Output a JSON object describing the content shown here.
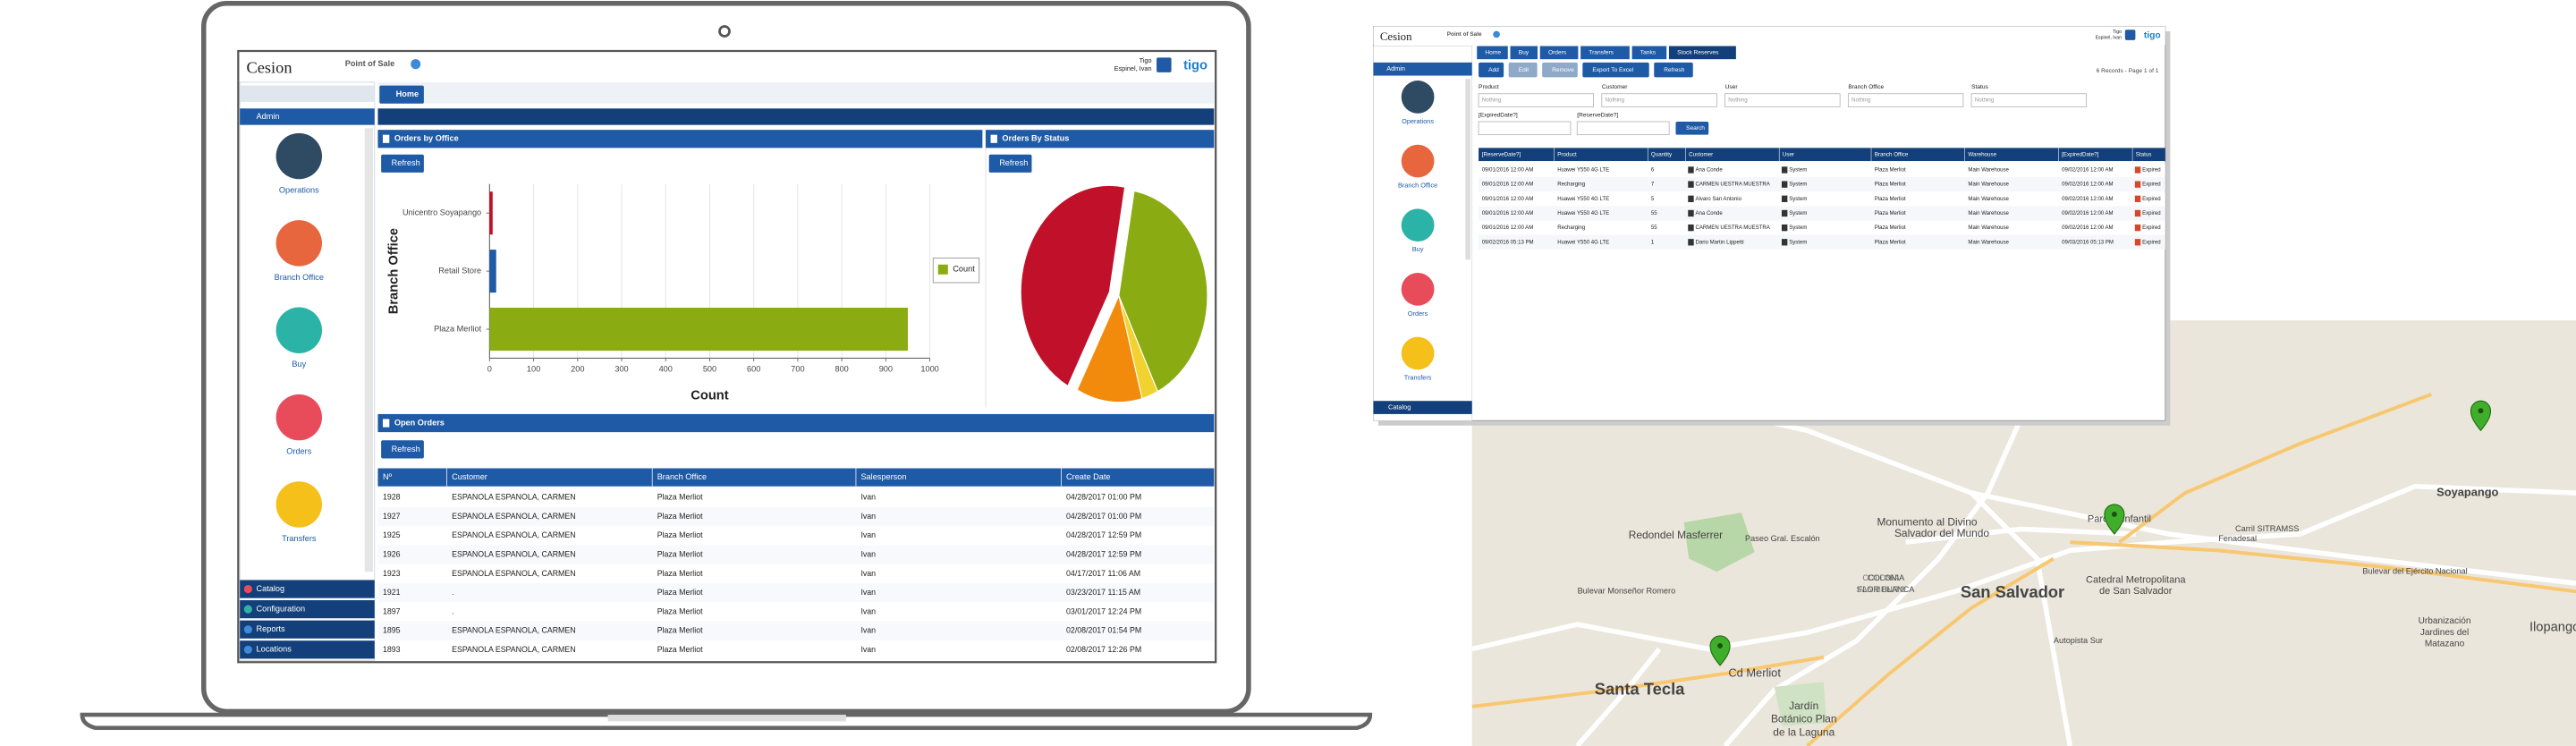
{
  "laptop_app": {
    "logo": "Cesion",
    "module": "Point of Sale",
    "company": "Tigo",
    "user": "Espinel, Ivan",
    "brand": "tigo",
    "sidebar": {
      "section": "Admin",
      "items": [
        "Operations",
        "Branch Office",
        "Buy",
        "Orders",
        "Transfers"
      ],
      "footer": [
        "Catalog",
        "Configuration",
        "Reports",
        "Locations"
      ]
    },
    "tab": "Home",
    "orders_by_office": {
      "title": "Orders by Office",
      "refresh": "Refresh",
      "chart": {
        "type": "bar",
        "categories": [
          "Unicentro Soyapango",
          "Retail Store",
          "Plaza Merliot"
        ],
        "values": [
          7,
          15,
          950
        ],
        "colors": [
          "#c0102a",
          "#1f5aa6",
          "#8aac12"
        ],
        "xlim": [
          0,
          1000
        ],
        "xticks": [
          0,
          100,
          200,
          300,
          400,
          500,
          600,
          700,
          800,
          900,
          1000
        ],
        "x_label": "Count",
        "y_label": "Branch Office",
        "legend": "Count",
        "legend_color": "#8aac12",
        "grid": true
      }
    },
    "orders_by_status": {
      "title": "Orders By Status",
      "refresh": "Refresh",
      "chart": {
        "type": "pie",
        "values": [
          40,
          3,
          12,
          45
        ],
        "colors": [
          "#8aac12",
          "#f2d230",
          "#f28a0c",
          "#c0102a"
        ]
      }
    },
    "open_orders": {
      "title": "Open Orders",
      "refresh": "Refresh",
      "columns": [
        "Nº",
        "Customer",
        "Branch Office",
        "Salesperson",
        "Create Date"
      ],
      "rows": [
        [
          "1928",
          "ESPANOLA ESPANOLA, CARMEN",
          "Plaza Merliot",
          "Ivan",
          "04/28/2017 01:00 PM"
        ],
        [
          "1927",
          "ESPANOLA ESPANOLA, CARMEN",
          "Plaza Merliot",
          "Ivan",
          "04/28/2017 01:00 PM"
        ],
        [
          "1925",
          "ESPANOLA ESPANOLA, CARMEN",
          "Plaza Merliot",
          "Ivan",
          "04/28/2017 12:59 PM"
        ],
        [
          "1926",
          "ESPANOLA ESPANOLA, CARMEN",
          "Plaza Merliot",
          "Ivan",
          "04/28/2017 12:59 PM"
        ],
        [
          "1923",
          "ESPANOLA ESPANOLA, CARMEN",
          "Plaza Merliot",
          "Ivan",
          "04/17/2017 11:06 AM"
        ],
        [
          "1921",
          ".",
          "Plaza Merliot",
          "Ivan",
          "03/23/2017 11:15 AM"
        ],
        [
          "1897",
          ".",
          "Plaza Merliot",
          "Ivan",
          "03/01/2017 12:24 PM"
        ],
        [
          "1895",
          "ESPANOLA ESPANOLA, CARMEN",
          "Plaza Merliot",
          "Ivan",
          "02/08/2017 01:54 PM"
        ],
        [
          "1893",
          "ESPANOLA ESPANOLA, CARMEN",
          "Plaza Merliot",
          "Ivan",
          "02/08/2017 12:26 PM"
        ]
      ]
    }
  },
  "stock_app": {
    "logo": "Cesion",
    "module": "Point of Sale",
    "company": "Tigo",
    "user": "Espinel, Ivan",
    "brand": "tigo",
    "sidebar": {
      "section": "Admin",
      "items": [
        "Operations",
        "Branch Office",
        "Buy",
        "Orders",
        "Transfers"
      ],
      "footer": [
        "Catalog"
      ]
    },
    "tabs": [
      "Home",
      "Buy",
      "Orders",
      "Transfers",
      "Tanks",
      "Stock Reserves"
    ],
    "toolbar": [
      "Add",
      "Edit",
      "Remove",
      "Export To Excel",
      "Refresh"
    ],
    "records": "6 Records - Page 1 of 1",
    "filters": [
      "Product",
      "Customer",
      "User",
      "Branch Office",
      "Status"
    ],
    "placeholder": "Nothing",
    "date_filters": [
      "[ExpiredDate?]",
      "[ReserveDate?]"
    ],
    "search": "Search",
    "columns": [
      "[ReserveDate?]",
      "Product",
      "Quantity",
      "Customer",
      "User",
      "Branch Office",
      "Warehouse",
      "[ExpiredDate?]",
      "Status"
    ],
    "rows": [
      [
        "09/01/2016 12:00 AM",
        "Huawei Y550 4G LTE",
        "6",
        "Ana Conde",
        "System",
        "Plaza Merliot",
        "Main Warehouse",
        "09/02/2016 12:00 AM",
        "Expired"
      ],
      [
        "09/01/2016 12:00 AM",
        "Recharging",
        "7",
        "CARMEN UESTRA MUESTRA",
        "System",
        "Plaza Merliot",
        "Main Warehouse",
        "09/02/2016 12:00 AM",
        "Expired"
      ],
      [
        "09/01/2016 12:00 AM",
        "Huawei Y550 4G LTE",
        "5",
        "Alvaro San Antonio",
        "System",
        "Plaza Merliot",
        "Main Warehouse",
        "09/02/2016 12:00 AM",
        "Expired"
      ],
      [
        "09/01/2016 12:00 AM",
        "Huawei Y550 4G LTE",
        "55",
        "Ana Conde",
        "System",
        "Plaza Merliot",
        "Main Warehouse",
        "09/02/2016 12:00 AM",
        "Expired"
      ],
      [
        "09/01/2016 12:00 AM",
        "Recharging",
        "55",
        "CARMEN UESTRA MUESTRA",
        "System",
        "Plaza Merliot",
        "Main Warehouse",
        "09/02/2016 12:00 AM",
        "Expired"
      ],
      [
        "09/02/2016 05:13 PM",
        "Huawei Y550 4G LTE",
        "1",
        "Dario Martin Lippetti",
        "System",
        "Plaza Merliot",
        "Main Warehouse",
        "09/03/2016 05:13 PM",
        "Expired"
      ]
    ]
  },
  "map": {
    "places": [
      "Soyapango",
      "Monumento al Divino",
      "Salvador del Mundo",
      "Parque Infantil",
      "Redondel Masferrer",
      "Paseo Gral. Escalón",
      "San Salvador",
      "Catedral Metropolitana",
      "de San Salvador",
      "COLONIA",
      "FLOR BLANCA",
      "COLONIA",
      "SAN BENITO",
      "Santa Tecla",
      "Cd Merliot",
      "Jardín",
      "Botánico Plan",
      "de la Laguna",
      "Urbanización",
      "Jardines del",
      "Matazano",
      "Ilopango",
      "Bulevar Monseñor Romero",
      "Bulevar del Ejército Nacional",
      "Fenadesal",
      "Carril SITRAMSS",
      "Autopista Sur"
    ]
  }
}
